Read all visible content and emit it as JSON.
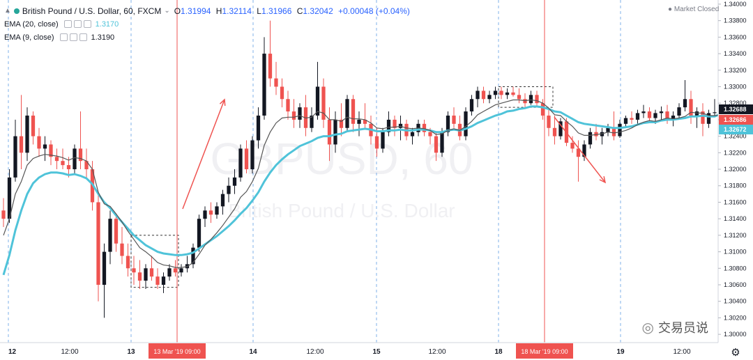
{
  "header": {
    "symbol_title": "British Pound / U.S. Dollar, 60, FXCM",
    "open_label": "O",
    "open": "1.31994",
    "high_label": "H",
    "high": "1.32114",
    "low_label": "L",
    "low": "1.31966",
    "close_label": "C",
    "close": "1.32042",
    "change": "+0.00048 (+0.04%)",
    "market_status": "Market Closed"
  },
  "indicators": [
    {
      "label": "EMA (20, close)",
      "value": "1.3170",
      "color": "#4fc3d9"
    },
    {
      "label": "EMA (9, close)",
      "value": "1.3190",
      "color": "#555555"
    }
  ],
  "watermark": {
    "symbol": "GBPUSD, 60",
    "name": "British Pound / U.S. Dollar"
  },
  "wechat_text": "交易员说",
  "chart_data": {
    "type": "candlestick",
    "y_ticks": [
      "1.34000",
      "1.33800",
      "1.33600",
      "1.33400",
      "1.33200",
      "1.33000",
      "1.32800",
      "1.32600",
      "1.32400",
      "1.32200",
      "1.32000",
      "1.31800",
      "1.31600",
      "1.31400",
      "1.31200",
      "1.31000",
      "1.30800",
      "1.30600",
      "1.30400",
      "1.30200",
      "1.30000"
    ],
    "ylim": [
      1.299,
      1.3405
    ],
    "x_ticks": [
      "12",
      "12:00",
      "13",
      "12:00",
      "14",
      "12:00",
      "15",
      "12:00",
      "18",
      "12:00",
      "19",
      "12:00"
    ],
    "date_markers": [
      "13 Mar '19   09:00",
      "18 Mar '19   09:00"
    ],
    "price_labels": [
      {
        "value": "1.32688",
        "color": "#131722"
      },
      {
        "value": "1.32686",
        "color": "#ef5350"
      },
      {
        "value": "1.32672",
        "color": "#4fc3d9"
      }
    ],
    "candles": [
      [
        1.315,
        1.3165,
        1.313,
        1.314
      ],
      [
        1.314,
        1.32,
        1.3135,
        1.319
      ],
      [
        1.319,
        1.326,
        1.3185,
        1.324
      ],
      [
        1.324,
        1.329,
        1.32,
        1.322
      ],
      [
        1.322,
        1.3275,
        1.321,
        1.3265
      ],
      [
        1.3265,
        1.327,
        1.323,
        1.324
      ],
      [
        1.324,
        1.325,
        1.3215,
        1.3225
      ],
      [
        1.3225,
        1.324,
        1.321,
        1.323
      ],
      [
        1.323,
        1.3235,
        1.3205,
        1.3215
      ],
      [
        1.3215,
        1.3225,
        1.32,
        1.321
      ],
      [
        1.321,
        1.3225,
        1.32,
        1.3205
      ],
      [
        1.3205,
        1.3215,
        1.319,
        1.32
      ],
      [
        1.32,
        1.323,
        1.3195,
        1.3225
      ],
      [
        1.3225,
        1.327,
        1.32,
        1.321
      ],
      [
        1.321,
        1.3225,
        1.319,
        1.32
      ],
      [
        1.32,
        1.321,
        1.315,
        1.316
      ],
      [
        1.316,
        1.317,
        1.304,
        1.306
      ],
      [
        1.306,
        1.311,
        1.302,
        1.31
      ],
      [
        1.31,
        1.315,
        1.3085,
        1.314
      ],
      [
        1.314,
        1.3145,
        1.31,
        1.311
      ],
      [
        1.311,
        1.313,
        1.3085,
        1.3095
      ],
      [
        1.3095,
        1.311,
        1.307,
        1.308
      ],
      [
        1.308,
        1.3095,
        1.306,
        1.3075
      ],
      [
        1.3075,
        1.309,
        1.3055,
        1.3065
      ],
      [
        1.3065,
        1.3085,
        1.3055,
        1.308
      ],
      [
        1.308,
        1.3095,
        1.3065,
        1.307
      ],
      [
        1.307,
        1.308,
        1.3055,
        1.306
      ],
      [
        1.306,
        1.3075,
        1.305,
        1.307
      ],
      [
        1.307,
        1.3085,
        1.3065,
        1.308
      ],
      [
        1.308,
        1.309,
        1.307,
        1.3075
      ],
      [
        1.3075,
        1.3085,
        1.307,
        1.308
      ],
      [
        1.308,
        1.3095,
        1.3075,
        1.3085
      ],
      [
        1.3085,
        1.311,
        1.308,
        1.3105
      ],
      [
        1.3105,
        1.3145,
        1.31,
        1.314
      ],
      [
        1.314,
        1.3155,
        1.313,
        1.315
      ],
      [
        1.315,
        1.316,
        1.3135,
        1.3145
      ],
      [
        1.3145,
        1.316,
        1.314,
        1.3155
      ],
      [
        1.3155,
        1.3175,
        1.3145,
        1.317
      ],
      [
        1.317,
        1.319,
        1.316,
        1.318
      ],
      [
        1.318,
        1.32,
        1.317,
        1.319
      ],
      [
        1.319,
        1.323,
        1.3185,
        1.3225
      ],
      [
        1.3225,
        1.3235,
        1.3195,
        1.32
      ],
      [
        1.32,
        1.324,
        1.3195,
        1.3235
      ],
      [
        1.3235,
        1.3275,
        1.3225,
        1.3265
      ],
      [
        1.3265,
        1.336,
        1.326,
        1.334
      ],
      [
        1.334,
        1.338,
        1.33,
        1.331
      ],
      [
        1.331,
        1.333,
        1.329,
        1.33
      ],
      [
        1.33,
        1.331,
        1.3275,
        1.3285
      ],
      [
        1.3285,
        1.3295,
        1.326,
        1.327
      ],
      [
        1.327,
        1.3285,
        1.325,
        1.326
      ],
      [
        1.326,
        1.328,
        1.325,
        1.3275
      ],
      [
        1.3275,
        1.329,
        1.324,
        1.325
      ],
      [
        1.325,
        1.3275,
        1.3245,
        1.3265
      ],
      [
        1.3265,
        1.333,
        1.326,
        1.33
      ],
      [
        1.33,
        1.331,
        1.325,
        1.326
      ],
      [
        1.326,
        1.3275,
        1.321,
        1.323
      ],
      [
        1.323,
        1.327,
        1.322,
        1.326
      ],
      [
        1.326,
        1.328,
        1.324,
        1.325
      ],
      [
        1.325,
        1.329,
        1.3245,
        1.3285
      ],
      [
        1.3285,
        1.329,
        1.3245,
        1.3255
      ],
      [
        1.3255,
        1.327,
        1.324,
        1.326
      ],
      [
        1.326,
        1.328,
        1.325,
        1.3255
      ],
      [
        1.3255,
        1.3265,
        1.323,
        1.324
      ],
      [
        1.324,
        1.325,
        1.3215,
        1.3225
      ],
      [
        1.3225,
        1.325,
        1.322,
        1.3245
      ],
      [
        1.3245,
        1.327,
        1.324,
        1.326
      ],
      [
        1.326,
        1.3265,
        1.324,
        1.325
      ],
      [
        1.325,
        1.3265,
        1.3235,
        1.3255
      ],
      [
        1.3255,
        1.326,
        1.3235,
        1.324
      ],
      [
        1.324,
        1.325,
        1.323,
        1.3245
      ],
      [
        1.3245,
        1.326,
        1.324,
        1.3255
      ],
      [
        1.3255,
        1.326,
        1.324,
        1.3245
      ],
      [
        1.3245,
        1.325,
        1.323,
        1.324
      ],
      [
        1.324,
        1.3245,
        1.321,
        1.322
      ],
      [
        1.322,
        1.325,
        1.3215,
        1.3245
      ],
      [
        1.3245,
        1.327,
        1.324,
        1.3265
      ],
      [
        1.3265,
        1.3275,
        1.325,
        1.3255
      ],
      [
        1.3255,
        1.3265,
        1.3235,
        1.324
      ],
      [
        1.324,
        1.3275,
        1.3235,
        1.327
      ],
      [
        1.327,
        1.329,
        1.3265,
        1.3285
      ],
      [
        1.3285,
        1.33,
        1.3275,
        1.3295
      ],
      [
        1.3295,
        1.33,
        1.328,
        1.3285
      ],
      [
        1.3285,
        1.3295,
        1.328,
        1.329
      ],
      [
        1.329,
        1.33,
        1.3285,
        1.3295
      ],
      [
        1.3295,
        1.33,
        1.3285,
        1.329
      ],
      [
        1.329,
        1.3298,
        1.3285,
        1.3293
      ],
      [
        1.3293,
        1.33,
        1.3288,
        1.329
      ],
      [
        1.329,
        1.3298,
        1.328,
        1.3285
      ],
      [
        1.3285,
        1.3292,
        1.3275,
        1.328
      ],
      [
        1.328,
        1.3295,
        1.3278,
        1.329
      ],
      [
        1.329,
        1.3295,
        1.3275,
        1.328
      ],
      [
        1.328,
        1.3285,
        1.326,
        1.3265
      ],
      [
        1.3265,
        1.3272,
        1.324,
        1.325
      ],
      [
        1.325,
        1.3265,
        1.323,
        1.324
      ],
      [
        1.324,
        1.3262,
        1.3236,
        1.3258
      ],
      [
        1.3258,
        1.3262,
        1.3228,
        1.3232
      ],
      [
        1.3232,
        1.324,
        1.322,
        1.3225
      ],
      [
        1.3225,
        1.3235,
        1.3185,
        1.3215
      ],
      [
        1.3215,
        1.3235,
        1.321,
        1.323
      ],
      [
        1.323,
        1.325,
        1.3225,
        1.3245
      ],
      [
        1.3245,
        1.3255,
        1.3235,
        1.324
      ],
      [
        1.324,
        1.325,
        1.323,
        1.3245
      ],
      [
        1.3245,
        1.3255,
        1.324,
        1.325
      ],
      [
        1.325,
        1.327,
        1.3235,
        1.324
      ],
      [
        1.324,
        1.326,
        1.3238,
        1.3255
      ],
      [
        1.3255,
        1.3265,
        1.325,
        1.3262
      ],
      [
        1.3262,
        1.327,
        1.3255,
        1.326
      ],
      [
        1.326,
        1.3272,
        1.3255,
        1.3268
      ],
      [
        1.3268,
        1.3278,
        1.3262,
        1.327
      ],
      [
        1.327,
        1.3275,
        1.3258,
        1.3262
      ],
      [
        1.3262,
        1.3272,
        1.3255,
        1.3268
      ],
      [
        1.3268,
        1.3276,
        1.326,
        1.327
      ],
      [
        1.327,
        1.3278,
        1.3255,
        1.326
      ],
      [
        1.326,
        1.327,
        1.3252,
        1.3265
      ],
      [
        1.3265,
        1.328,
        1.326,
        1.3275
      ],
      [
        1.3275,
        1.3308,
        1.327,
        1.3285
      ],
      [
        1.3285,
        1.3295,
        1.3255,
        1.3265
      ],
      [
        1.3265,
        1.3275,
        1.325,
        1.327
      ],
      [
        1.327,
        1.328,
        1.324,
        1.3255
      ],
      [
        1.3255,
        1.3272,
        1.325,
        1.3268
      ],
      [
        1.3268,
        1.3285,
        1.3264,
        1.3269
      ]
    ],
    "ema20": [
      1.3072,
      1.3096,
      1.3126,
      1.315,
      1.317,
      1.3183,
      1.319,
      1.3194,
      1.3196,
      1.3196,
      1.3195,
      1.3193,
      1.3194,
      1.3192,
      1.3189,
      1.3182,
      1.317,
      1.316,
      1.3153,
      1.3144,
      1.3136,
      1.3128,
      1.312,
      1.3114,
      1.3108,
      1.3104,
      1.31,
      1.3098,
      1.3097,
      1.3096,
      1.3096,
      1.3097,
      1.3099,
      1.3104,
      1.3109,
      1.3114,
      1.3119,
      1.3125,
      1.3131,
      1.3138,
      1.3146,
      1.3153,
      1.3162,
      1.3172,
      1.3185,
      1.3196,
      1.3205,
      1.3212,
      1.3218,
      1.3223,
      1.3228,
      1.3231,
      1.3234,
      1.3238,
      1.324,
      1.324,
      1.3242,
      1.3243,
      1.3246,
      1.3247,
      1.3248,
      1.3249,
      1.3248,
      1.3246,
      1.3246,
      1.3247,
      1.3247,
      1.3248,
      1.3247,
      1.3247,
      1.3248,
      1.3248,
      1.3247,
      1.3245,
      1.3245,
      1.3247,
      1.3248,
      1.3247,
      1.3249,
      1.3252,
      1.3256,
      1.3259,
      1.3262,
      1.3265,
      1.3267,
      1.327,
      1.3271,
      1.3273,
      1.3274,
      1.3276,
      1.3276,
      1.3275,
      1.3273,
      1.327,
      1.3269,
      1.3265,
      1.3261,
      1.3257,
      1.3255,
      1.3254,
      1.3253,
      1.3252,
      1.3251,
      1.325,
      1.325,
      1.3251,
      1.3252,
      1.3254,
      1.3256,
      1.3257,
      1.3257,
      1.3259,
      1.326,
      1.326,
      1.3261,
      1.3262,
      1.3264,
      1.3264,
      1.3265,
      1.3264,
      1.3264,
      1.3267
    ],
    "ema9": [
      1.312,
      1.314,
      1.317,
      1.3185,
      1.3205,
      1.3213,
      1.3216,
      1.3218,
      1.3217,
      1.3216,
      1.3214,
      1.3211,
      1.3214,
      1.3213,
      1.321,
      1.32,
      1.3172,
      1.3158,
      1.3155,
      1.3146,
      1.3136,
      1.3125,
      1.3115,
      1.3105,
      1.31,
      1.3094,
      1.3087,
      1.3084,
      1.3083,
      1.3081,
      1.3081,
      1.3082,
      1.3087,
      1.3097,
      1.3108,
      1.3115,
      1.3123,
      1.3132,
      1.3142,
      1.3152,
      1.3166,
      1.3173,
      1.3185,
      1.3201,
      1.3229,
      1.3245,
      1.3256,
      1.3262,
      1.3263,
      1.3263,
      1.3265,
      1.3262,
      1.3263,
      1.327,
      1.3268,
      1.326,
      1.326,
      1.3258,
      1.3263,
      1.3261,
      1.3261,
      1.326,
      1.3256,
      1.325,
      1.3249,
      1.3251,
      1.3251,
      1.3252,
      1.325,
      1.3249,
      1.325,
      1.3249,
      1.3247,
      1.3242,
      1.3243,
      1.3247,
      1.3249,
      1.3247,
      1.3252,
      1.3258,
      1.3266,
      1.327,
      1.3274,
      1.3278,
      1.328,
      1.3282,
      1.3284,
      1.3284,
      1.3283,
      1.3284,
      1.3283,
      1.328,
      1.3274,
      1.3266,
      1.3265,
      1.3258,
      1.3252,
      1.3244,
      1.3241,
      1.3241,
      1.3242,
      1.3243,
      1.3245,
      1.3244,
      1.3245,
      1.3247,
      1.325,
      1.3254,
      1.3257,
      1.3259,
      1.3258,
      1.326,
      1.3262,
      1.3261,
      1.3262,
      1.3264,
      1.3269,
      1.3268,
      1.3268,
      1.3265,
      1.3265,
      1.3266
    ]
  }
}
